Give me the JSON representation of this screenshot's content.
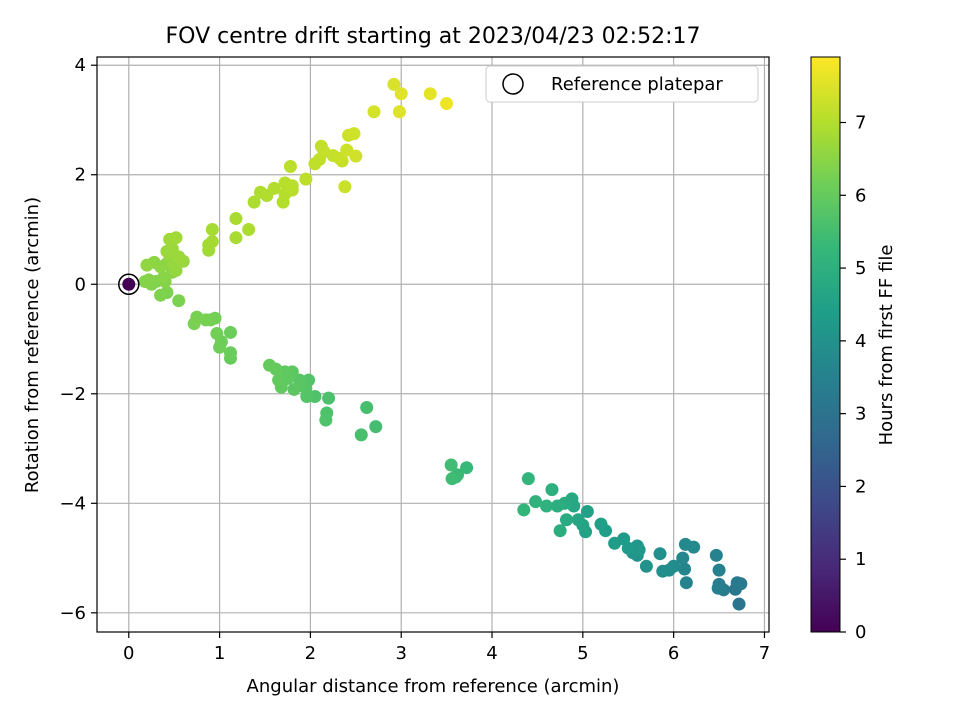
{
  "chart_data": {
    "type": "scatter",
    "title": "FOV centre drift starting at 2023/04/23 02:52:17",
    "xlabel": "Angular distance from reference (arcmin)",
    "ylabel": "Rotation from reference (arcmin)",
    "xlim": [
      -0.35,
      7.05
    ],
    "ylim": [
      -6.35,
      4.15
    ],
    "xticks": [
      0,
      1,
      2,
      3,
      4,
      5,
      6,
      7
    ],
    "yticks": [
      -6,
      -4,
      -2,
      0,
      2,
      4
    ],
    "xtick_labels": [
      "0",
      "1",
      "2",
      "3",
      "4",
      "5",
      "6",
      "7"
    ],
    "ytick_labels": [
      "−6",
      "−4",
      "−2",
      "0",
      "2",
      "4"
    ],
    "grid": true,
    "legend": {
      "placement": "top-right",
      "entries": [
        "Reference platepar"
      ]
    },
    "colorbar": {
      "label": "Hours from first FF file",
      "range": [
        0,
        7.9
      ],
      "ticks": [
        0,
        1,
        2,
        3,
        4,
        5,
        6,
        7
      ],
      "tick_labels": [
        "0",
        "1",
        "2",
        "3",
        "4",
        "5",
        "6",
        "7"
      ],
      "colormap": [
        "#440154",
        "#482878",
        "#3e4989",
        "#31688e",
        "#26828e",
        "#1f9e89",
        "#35b779",
        "#6ece58",
        "#b5de2b",
        "#fde725"
      ]
    },
    "reference_point": {
      "x": 0,
      "y": 0,
      "hours": 0
    },
    "points": [
      [
        6.72,
        -5.84,
        3.05
      ],
      [
        6.68,
        -5.57,
        3.15
      ],
      [
        6.74,
        -5.47,
        3.2
      ],
      [
        6.7,
        -5.45,
        3.25
      ],
      [
        6.55,
        -5.58,
        3.3
      ],
      [
        6.5,
        -5.48,
        3.35
      ],
      [
        6.49,
        -5.55,
        3.4
      ],
      [
        6.5,
        -5.22,
        3.45
      ],
      [
        6.47,
        -4.95,
        3.5
      ],
      [
        6.14,
        -5.45,
        3.55
      ],
      [
        6.12,
        -5.2,
        3.6
      ],
      [
        6.1,
        -5.0,
        3.65
      ],
      [
        6.13,
        -4.75,
        3.7
      ],
      [
        6.22,
        -4.8,
        3.75
      ],
      [
        6.0,
        -5.15,
        3.8
      ],
      [
        5.95,
        -5.22,
        3.85
      ],
      [
        5.88,
        -5.24,
        3.9
      ],
      [
        5.85,
        -4.92,
        3.95
      ],
      [
        5.7,
        -5.15,
        4.0
      ],
      [
        5.6,
        -4.95,
        4.05
      ],
      [
        5.55,
        -4.9,
        4.1
      ],
      [
        5.6,
        -4.78,
        4.15
      ],
      [
        5.62,
        -4.85,
        4.2
      ],
      [
        5.5,
        -4.82,
        4.25
      ],
      [
        5.45,
        -4.65,
        4.3
      ],
      [
        5.35,
        -4.73,
        4.35
      ],
      [
        5.25,
        -4.5,
        4.4
      ],
      [
        5.2,
        -4.38,
        4.45
      ],
      [
        5.05,
        -4.15,
        4.5
      ],
      [
        5.03,
        -4.52,
        4.55
      ],
      [
        5.0,
        -4.4,
        4.6
      ],
      [
        4.95,
        -4.3,
        4.65
      ],
      [
        4.9,
        -4.05,
        4.7
      ],
      [
        4.88,
        -3.92,
        4.75
      ],
      [
        4.82,
        -4.3,
        4.8
      ],
      [
        4.8,
        -4.0,
        4.85
      ],
      [
        4.75,
        -4.5,
        4.9
      ],
      [
        4.72,
        -4.05,
        4.95
      ],
      [
        4.66,
        -3.75,
        5.0
      ],
      [
        4.6,
        -4.05,
        5.05
      ],
      [
        4.48,
        -3.97,
        5.1
      ],
      [
        4.4,
        -3.55,
        5.15
      ],
      [
        4.35,
        -4.12,
        5.2
      ],
      [
        3.72,
        -3.35,
        5.3
      ],
      [
        3.62,
        -3.48,
        5.35
      ],
      [
        3.6,
        -3.52,
        5.38
      ],
      [
        3.56,
        -3.55,
        5.42
      ],
      [
        3.55,
        -3.3,
        5.45
      ],
      [
        2.72,
        -2.6,
        5.5
      ],
      [
        2.62,
        -2.25,
        5.55
      ],
      [
        2.56,
        -2.75,
        5.58
      ],
      [
        2.2,
        -2.08,
        5.62
      ],
      [
        2.18,
        -2.35,
        5.65
      ],
      [
        2.17,
        -2.48,
        5.68
      ],
      [
        2.05,
        -2.05,
        5.7
      ],
      [
        1.98,
        -1.75,
        5.72
      ],
      [
        1.96,
        -2.05,
        5.75
      ],
      [
        1.95,
        -1.9,
        5.77
      ],
      [
        1.9,
        -1.85,
        5.8
      ],
      [
        1.88,
        -1.75,
        5.82
      ],
      [
        1.82,
        -1.92,
        5.85
      ],
      [
        1.8,
        -1.6,
        5.87
      ],
      [
        1.75,
        -1.72,
        5.9
      ],
      [
        1.72,
        -1.6,
        5.92
      ],
      [
        1.68,
        -1.88,
        5.94
      ],
      [
        1.65,
        -1.75,
        5.96
      ],
      [
        1.62,
        -1.55,
        5.98
      ],
      [
        1.55,
        -1.48,
        6.0
      ],
      [
        1.12,
        -1.35,
        6.03
      ],
      [
        1.12,
        -1.25,
        6.06
      ],
      [
        1.12,
        -0.88,
        6.09
      ],
      [
        1.02,
        -1.05,
        6.12
      ],
      [
        1.0,
        -1.15,
        6.15
      ],
      [
        0.97,
        -0.9,
        6.18
      ],
      [
        0.95,
        -0.62,
        6.2
      ],
      [
        0.9,
        -0.65,
        6.22
      ],
      [
        0.85,
        -0.65,
        6.24
      ],
      [
        0.75,
        -0.6,
        6.26
      ],
      [
        0.72,
        -0.72,
        6.28
      ],
      [
        0.55,
        -0.3,
        6.3
      ],
      [
        0.42,
        -0.15,
        6.32
      ],
      [
        0.35,
        -0.2,
        6.34
      ],
      [
        0.3,
        0.05,
        6.36
      ],
      [
        0.25,
        0.0,
        6.38
      ],
      [
        0.18,
        0.05,
        6.4
      ],
      [
        0.22,
        0.08,
        6.42
      ],
      [
        0.4,
        0.05,
        6.44
      ],
      [
        0.38,
        0.12,
        6.46
      ],
      [
        0.48,
        0.22,
        6.48
      ],
      [
        0.42,
        0.38,
        6.5
      ],
      [
        0.35,
        0.32,
        6.52
      ],
      [
        0.28,
        0.4,
        6.54
      ],
      [
        0.2,
        0.35,
        6.56
      ],
      [
        0.45,
        0.45,
        6.58
      ],
      [
        0.45,
        0.55,
        6.6
      ],
      [
        0.52,
        0.25,
        6.62
      ],
      [
        0.5,
        0.35,
        6.64
      ],
      [
        0.6,
        0.42,
        6.66
      ],
      [
        0.48,
        0.65,
        6.68
      ],
      [
        0.42,
        0.6,
        6.7
      ],
      [
        0.55,
        0.5,
        6.72
      ],
      [
        0.45,
        0.82,
        6.74
      ],
      [
        0.52,
        0.85,
        6.76
      ],
      [
        0.88,
        0.62,
        6.78
      ],
      [
        0.88,
        0.72,
        6.8
      ],
      [
        0.92,
        0.78,
        6.82
      ],
      [
        0.92,
        1.0,
        6.84
      ],
      [
        1.18,
        0.85,
        6.86
      ],
      [
        1.18,
        1.2,
        6.88
      ],
      [
        1.32,
        1.0,
        6.9
      ],
      [
        1.38,
        1.5,
        6.92
      ],
      [
        1.45,
        1.68,
        6.94
      ],
      [
        1.52,
        1.62,
        6.96
      ],
      [
        1.6,
        1.75,
        6.98
      ],
      [
        1.7,
        1.5,
        7.0
      ],
      [
        1.72,
        1.65,
        7.02
      ],
      [
        1.72,
        1.85,
        7.04
      ],
      [
        1.8,
        1.72,
        7.06
      ],
      [
        1.8,
        1.8,
        7.08
      ],
      [
        1.78,
        2.15,
        7.1
      ],
      [
        1.95,
        1.92,
        7.12
      ],
      [
        2.05,
        2.2,
        7.14
      ],
      [
        2.1,
        2.28,
        7.16
      ],
      [
        2.12,
        2.52,
        7.18
      ],
      [
        2.15,
        2.42,
        7.2
      ],
      [
        2.25,
        2.35,
        7.22
      ],
      [
        2.32,
        2.3,
        7.24
      ],
      [
        2.35,
        2.25,
        7.26
      ],
      [
        2.38,
        1.78,
        7.28
      ],
      [
        2.4,
        2.45,
        7.3
      ],
      [
        2.42,
        2.72,
        7.32
      ],
      [
        2.48,
        2.75,
        7.34
      ],
      [
        2.5,
        2.34,
        7.36
      ],
      [
        2.7,
        3.15,
        7.4
      ],
      [
        2.92,
        3.65,
        7.45
      ],
      [
        2.98,
        3.15,
        7.5
      ],
      [
        3.0,
        3.48,
        7.55
      ],
      [
        3.32,
        3.48,
        7.6
      ],
      [
        3.5,
        3.3,
        7.7
      ]
    ]
  }
}
